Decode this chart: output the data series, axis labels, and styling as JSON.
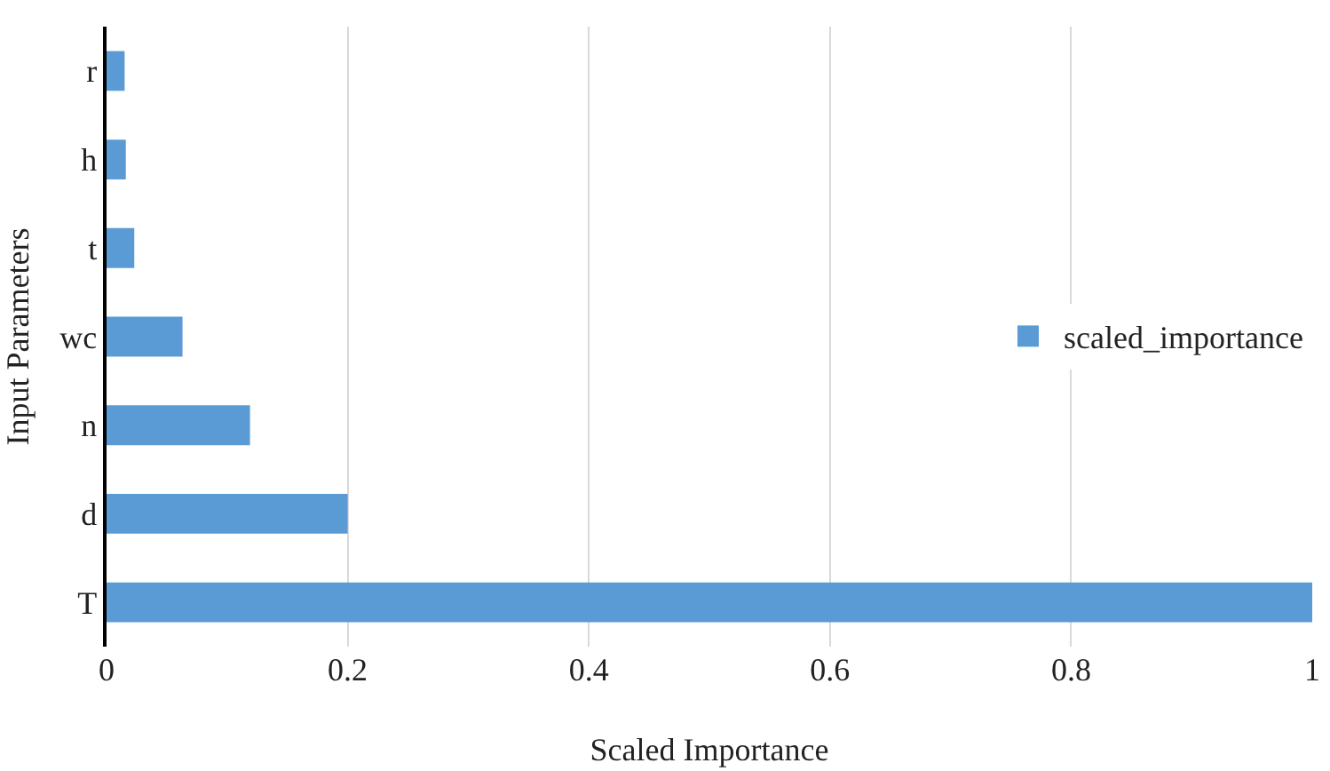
{
  "chart_data": {
    "type": "bar",
    "orientation": "horizontal",
    "xlabel": "Scaled Importance",
    "ylabel": "Input Parameters",
    "categories": [
      "r",
      "h",
      "t",
      "wc",
      "n",
      "d",
      "T"
    ],
    "series": [
      {
        "name": "scaled_importance",
        "color": "#5b9bd5",
        "values": [
          0.015,
          0.016,
          0.023,
          0.063,
          0.119,
          0.2,
          1.0
        ]
      }
    ],
    "xlim": [
      0,
      1
    ],
    "xticks": [
      0,
      0.2,
      0.4,
      0.6,
      0.8,
      1
    ],
    "grid": "x",
    "legend": "right"
  }
}
